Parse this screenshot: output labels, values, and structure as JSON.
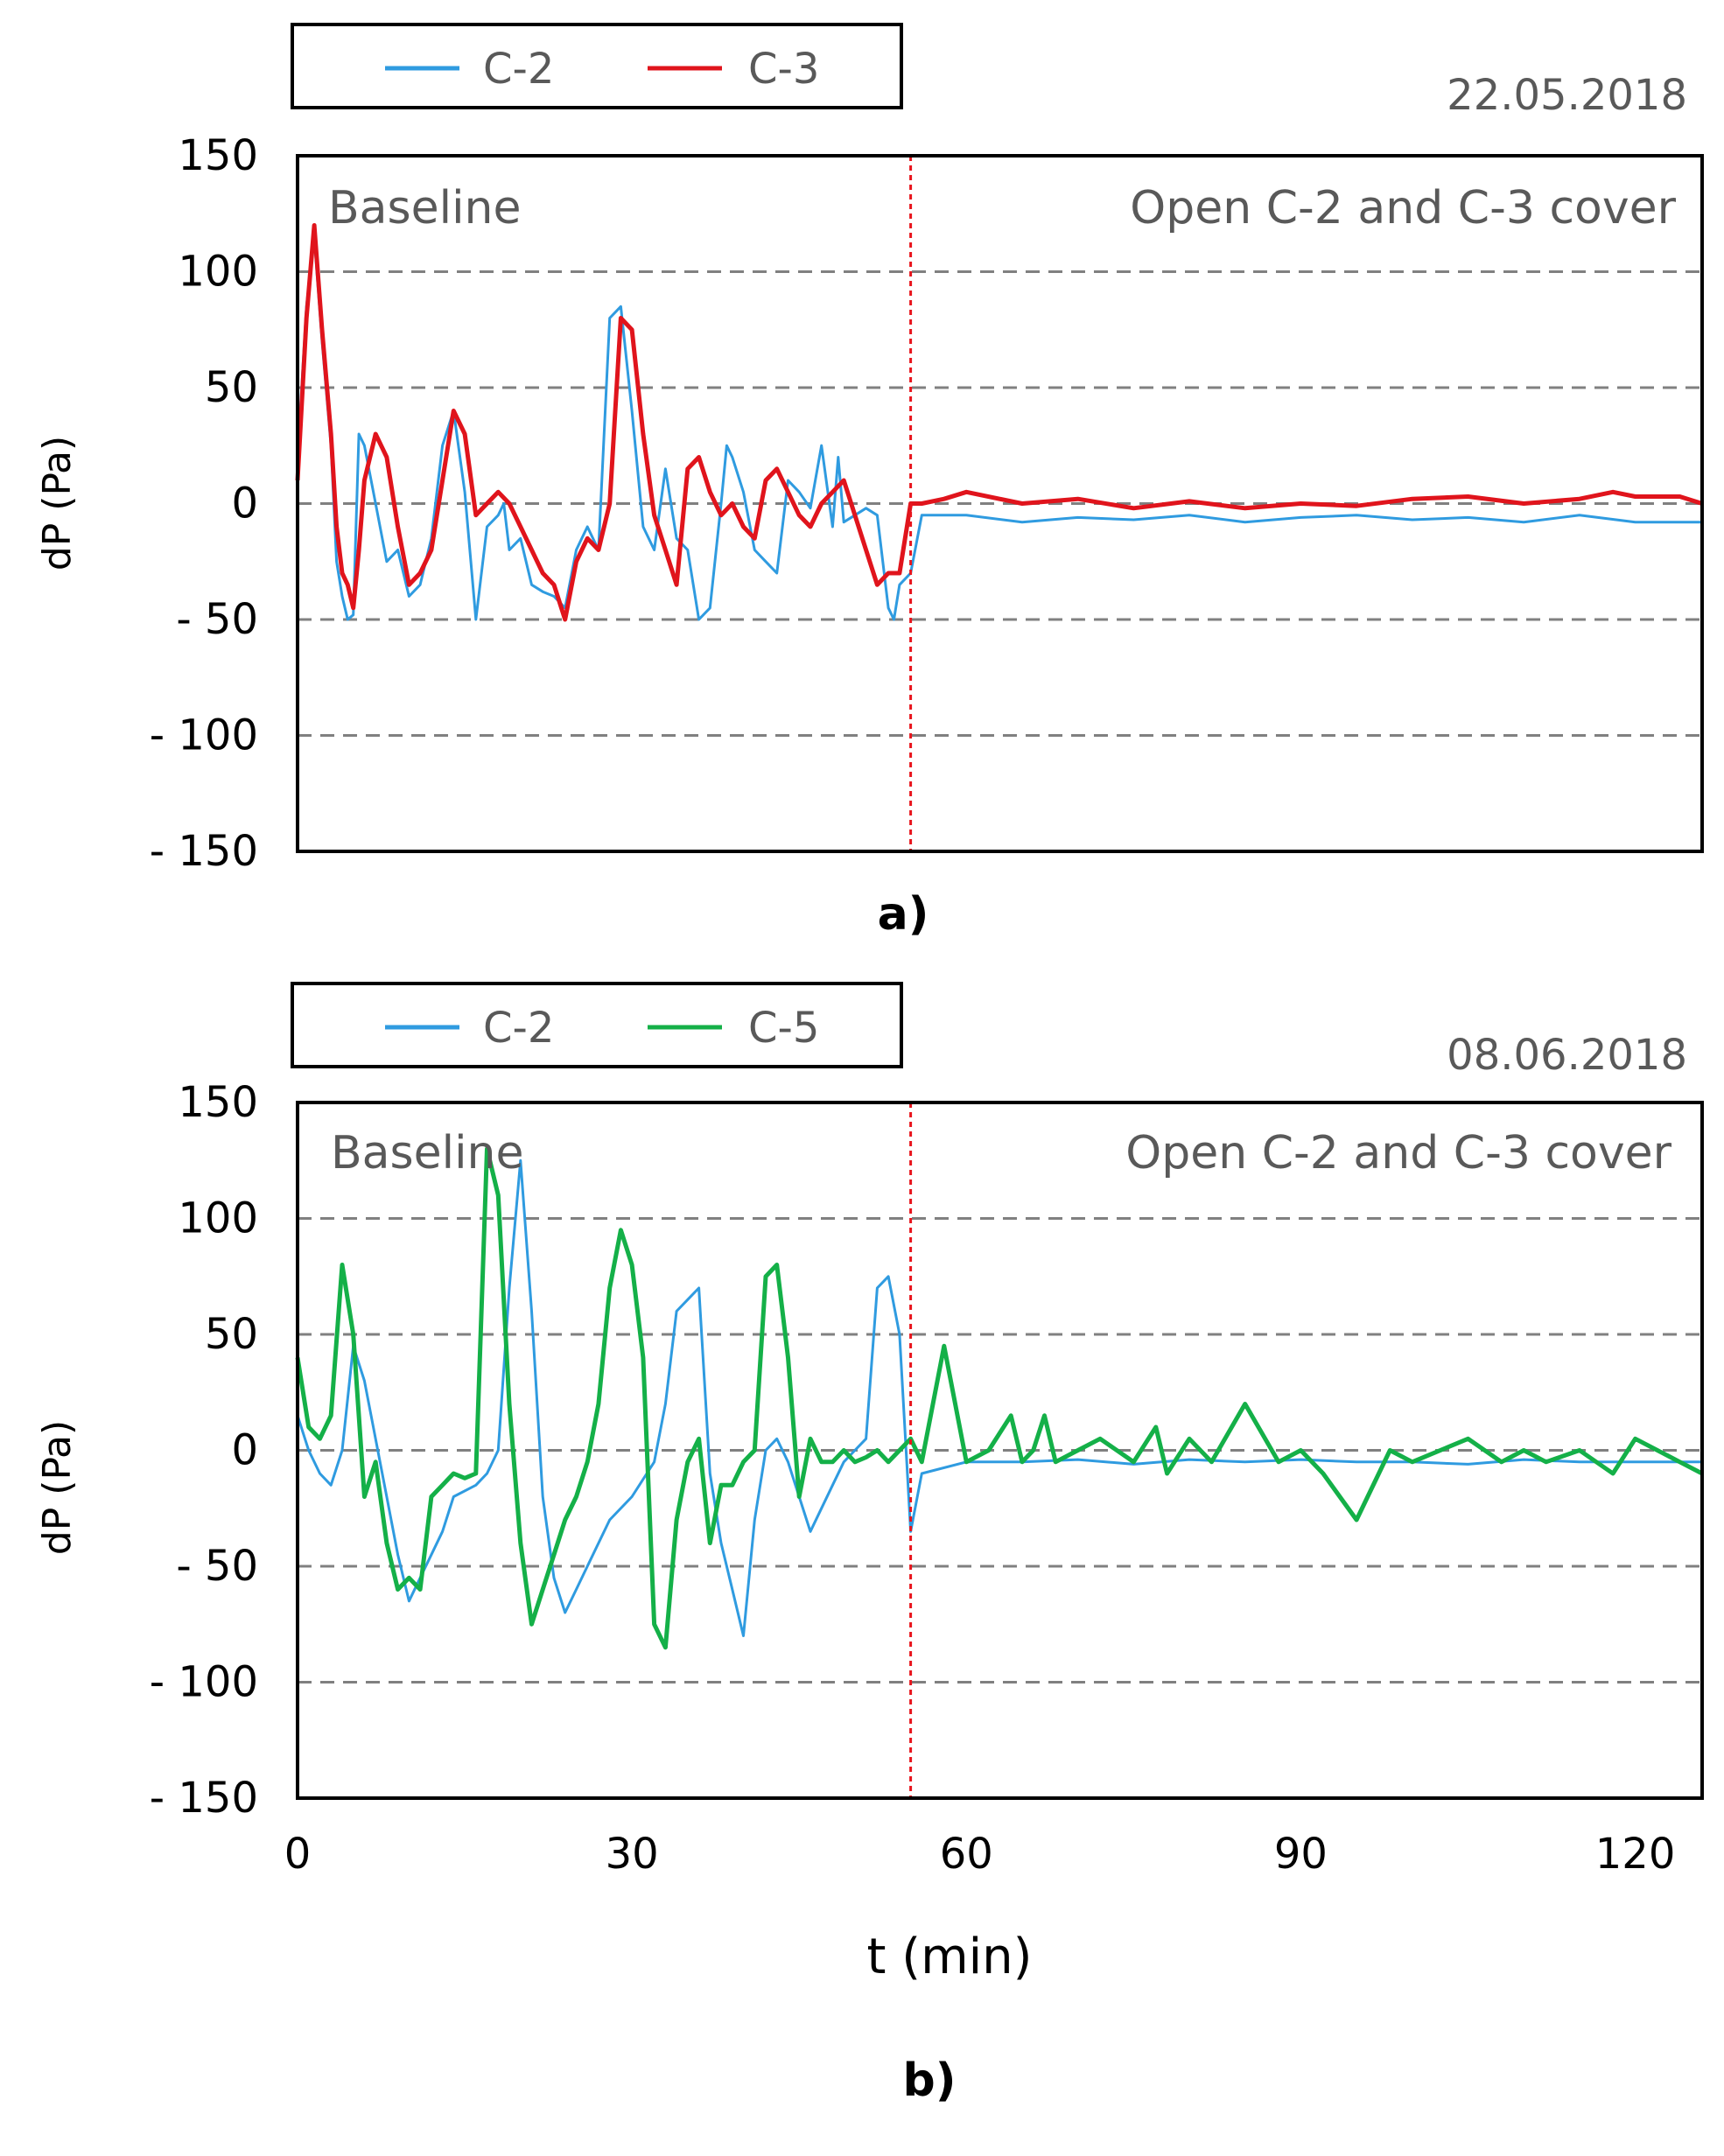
{
  "colors": {
    "c2": "#2f9be0",
    "c3": "#e0141c",
    "c5": "#14b048",
    "marker": "#e8141c",
    "grid": "#808080",
    "text": "#595959"
  },
  "x_axis": {
    "label": "t (min)",
    "ticks": [
      "0",
      "30",
      "60",
      "90",
      "120"
    ]
  },
  "chart_data": [
    {
      "type": "line",
      "panel_label": "a)",
      "date": "22.05.2018",
      "ylabel": "dP (Pa)",
      "xlim": [
        0,
        126
      ],
      "ylim": [
        -150,
        150
      ],
      "yticks": [
        150,
        100,
        50,
        0,
        -50,
        -100,
        -150
      ],
      "ytick_labels": [
        "150",
        "100",
        "50",
        "0",
        "- 50",
        "- 100",
        "- 150"
      ],
      "grid": "horizontal dashed",
      "event_x": 55,
      "annotations": [
        "Baseline",
        "Open C-2 and C-3 cover"
      ],
      "legend": [
        "C-2",
        "C-3"
      ],
      "series": [
        {
          "name": "C-2",
          "color_key": "c2",
          "x": [
            0,
            0.8,
            1.5,
            2.2,
            3,
            3.5,
            4,
            4.5,
            5,
            5.5,
            6,
            7,
            8,
            9,
            10,
            11,
            12,
            13,
            14,
            15,
            16,
            17,
            18,
            18.5,
            19,
            20,
            21,
            22,
            23,
            24,
            25,
            26,
            27,
            28,
            29,
            30,
            31,
            32,
            33,
            34,
            35,
            36,
            37,
            38,
            38.5,
            39,
            40,
            41,
            42,
            43,
            44,
            45,
            46,
            47,
            48,
            48.5,
            49,
            50,
            51,
            52,
            53,
            53.5,
            54,
            55,
            56,
            60,
            65,
            70,
            75,
            80,
            85,
            90,
            95,
            100,
            105,
            110,
            115,
            120,
            126
          ],
          "y": [
            20,
            85,
            115,
            70,
            25,
            -25,
            -40,
            -50,
            -48,
            30,
            25,
            0,
            -25,
            -20,
            -40,
            -35,
            -15,
            25,
            40,
            5,
            -50,
            -10,
            -5,
            0,
            -20,
            -15,
            -35,
            -38,
            -40,
            -45,
            -20,
            -10,
            -20,
            80,
            85,
            40,
            -10,
            -20,
            15,
            -15,
            -20,
            -50,
            -45,
            0,
            25,
            20,
            5,
            -20,
            -25,
            -30,
            10,
            5,
            -2,
            25,
            -10,
            20,
            -8,
            -5,
            -2,
            -5,
            -45,
            -50,
            -35,
            -30,
            -5,
            -5,
            -8,
            -6,
            -7,
            -5,
            -8,
            -6,
            -5,
            -7,
            -6,
            -8,
            -5,
            -8,
            -8
          ]
        },
        {
          "name": "C-3",
          "color_key": "c3",
          "x": [
            0,
            0.8,
            1.5,
            2.2,
            3,
            3.5,
            4,
            4.5,
            5,
            5.5,
            6,
            7,
            8,
            9,
            10,
            11,
            12,
            13,
            14,
            15,
            16,
            17,
            18,
            19,
            20,
            21,
            22,
            23,
            24,
            25,
            26,
            27,
            28,
            29,
            30,
            31,
            32,
            33,
            34,
            35,
            36,
            37,
            38,
            39,
            40,
            41,
            42,
            43,
            44,
            45,
            46,
            47,
            48,
            49,
            50,
            51,
            52,
            53,
            54,
            55,
            56,
            58,
            60,
            65,
            70,
            75,
            80,
            85,
            90,
            95,
            100,
            105,
            110,
            115,
            118,
            120,
            124,
            126
          ],
          "y": [
            10,
            80,
            120,
            75,
            30,
            -10,
            -30,
            -35,
            -45,
            -20,
            10,
            30,
            20,
            -10,
            -35,
            -30,
            -20,
            10,
            40,
            30,
            -5,
            0,
            5,
            0,
            -10,
            -20,
            -30,
            -35,
            -50,
            -25,
            -15,
            -20,
            0,
            80,
            75,
            30,
            -5,
            -20,
            -35,
            15,
            20,
            5,
            -5,
            0,
            -10,
            -15,
            10,
            15,
            5,
            -5,
            -10,
            0,
            5,
            10,
            -5,
            -20,
            -35,
            -30,
            -30,
            0,
            0,
            2,
            5,
            0,
            2,
            -2,
            1,
            -2,
            0,
            -1,
            2,
            3,
            0,
            2,
            5,
            3,
            3,
            0
          ]
        }
      ]
    },
    {
      "type": "line",
      "panel_label": "b)",
      "date": "08.06.2018",
      "ylabel": "dP (Pa)",
      "xlabel": "t (min)",
      "xlim": [
        0,
        126
      ],
      "xticks": [
        0,
        30,
        60,
        90,
        120
      ],
      "ylim": [
        -150,
        150
      ],
      "yticks": [
        150,
        100,
        50,
        0,
        -50,
        -100,
        -150
      ],
      "ytick_labels": [
        "150",
        "100",
        "50",
        "0",
        "- 50",
        "- 100",
        "- 150"
      ],
      "grid": "horizontal dashed",
      "event_x": 55,
      "annotations": [
        "Baseline",
        "Open C-2 and C-3 cover"
      ],
      "legend": [
        "C-2",
        "C-5"
      ],
      "series": [
        {
          "name": "C-2",
          "color_key": "c2",
          "x": [
            0,
            1,
            2,
            3,
            4,
            5,
            6,
            8,
            9,
            10,
            11,
            12,
            13,
            14,
            16,
            17,
            18,
            19,
            20,
            21,
            22,
            23,
            24,
            25,
            26,
            28,
            30,
            32,
            33,
            34,
            35,
            36,
            37,
            38,
            39,
            40,
            41,
            42,
            43,
            44,
            45,
            46,
            47,
            48,
            49,
            50,
            51,
            52,
            53,
            54,
            55,
            56,
            60,
            65,
            70,
            75,
            80,
            85,
            90,
            95,
            100,
            105,
            110,
            115,
            120,
            126
          ],
          "y": [
            15,
            0,
            -10,
            -15,
            0,
            45,
            30,
            -20,
            -45,
            -65,
            -55,
            -45,
            -35,
            -20,
            -15,
            -10,
            0,
            70,
            125,
            60,
            -20,
            -55,
            -70,
            -60,
            -50,
            -30,
            -20,
            -5,
            20,
            60,
            65,
            70,
            -10,
            -40,
            -60,
            -80,
            -30,
            0,
            5,
            -5,
            -20,
            -35,
            -25,
            -15,
            -5,
            0,
            5,
            70,
            75,
            50,
            -35,
            -10,
            -5,
            -5,
            -4,
            -6,
            -4,
            -5,
            -4,
            -5,
            -5,
            -6,
            -4,
            -5,
            -5,
            -5
          ]
        },
        {
          "name": "C-5",
          "color_key": "c5",
          "x": [
            0,
            1,
            2,
            3,
            4,
            5,
            6,
            7,
            8,
            9,
            10,
            11,
            12,
            13,
            14,
            15,
            16,
            17,
            18,
            19,
            20,
            21,
            22,
            23,
            24,
            25,
            26,
            27,
            28,
            29,
            30,
            31,
            32,
            33,
            34,
            35,
            36,
            37,
            38,
            39,
            40,
            41,
            42,
            43,
            44,
            45,
            46,
            47,
            48,
            49,
            50,
            51,
            52,
            53,
            54,
            55,
            56,
            58,
            60,
            62,
            64,
            65,
            66,
            67,
            68,
            70,
            72,
            75,
            77,
            78,
            80,
            82,
            85,
            88,
            90,
            92,
            95,
            98,
            100,
            105,
            108,
            110,
            112,
            115,
            118,
            120,
            124,
            126
          ],
          "y": [
            40,
            10,
            5,
            15,
            80,
            50,
            -20,
            -5,
            -40,
            -60,
            -55,
            -60,
            -20,
            -15,
            -10,
            -12,
            -10,
            130,
            110,
            20,
            -40,
            -75,
            -60,
            -45,
            -30,
            -20,
            -5,
            20,
            70,
            95,
            80,
            40,
            -75,
            -85,
            -30,
            -5,
            5,
            -40,
            -15,
            -15,
            -5,
            0,
            75,
            80,
            40,
            -20,
            5,
            -5,
            -5,
            0,
            -5,
            -3,
            0,
            -5,
            0,
            5,
            -5,
            45,
            -5,
            0,
            15,
            -5,
            0,
            15,
            -5,
            0,
            5,
            -5,
            10,
            -10,
            5,
            -5,
            20,
            -5,
            0,
            -10,
            -30,
            0,
            -5,
            5,
            -5,
            0,
            -5,
            0,
            -10,
            5,
            -5,
            -10
          ]
        }
      ]
    }
  ]
}
